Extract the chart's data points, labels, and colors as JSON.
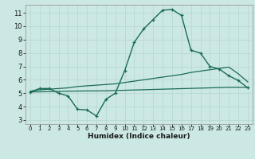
{
  "xlabel": "Humidex (Indice chaleur)",
  "bg_color": "#cce8e4",
  "grid_color": "#b8d8d4",
  "line_color": "#1a6b5a",
  "xlim": [
    -0.5,
    23.5
  ],
  "ylim": [
    2.7,
    11.6
  ],
  "xticks": [
    0,
    1,
    2,
    3,
    4,
    5,
    6,
    7,
    8,
    9,
    10,
    11,
    12,
    13,
    14,
    15,
    16,
    17,
    18,
    19,
    20,
    21,
    22,
    23
  ],
  "yticks": [
    3,
    4,
    5,
    6,
    7,
    8,
    9,
    10,
    11
  ],
  "line1_x": [
    0,
    1,
    2,
    3,
    4,
    5,
    6,
    7,
    8,
    9,
    10,
    11,
    12,
    13,
    14,
    15,
    16,
    17,
    18,
    19,
    20,
    21,
    22,
    23
  ],
  "line1_y": [
    5.1,
    5.35,
    5.35,
    5.0,
    4.8,
    3.8,
    3.75,
    3.3,
    4.55,
    5.0,
    6.7,
    8.8,
    9.8,
    10.5,
    11.2,
    11.25,
    10.8,
    8.2,
    8.0,
    7.0,
    6.8,
    6.3,
    5.95,
    5.4
  ],
  "line2_x": [
    0,
    1,
    2,
    3,
    4,
    5,
    6,
    7,
    8,
    9,
    10,
    11,
    12,
    13,
    14,
    15,
    16,
    17,
    18,
    19,
    20,
    21,
    22,
    23
  ],
  "line2_y": [
    5.15,
    5.25,
    5.3,
    5.35,
    5.4,
    5.5,
    5.55,
    5.6,
    5.65,
    5.7,
    5.8,
    5.9,
    6.0,
    6.1,
    6.2,
    6.3,
    6.4,
    6.55,
    6.65,
    6.75,
    6.85,
    6.95,
    6.45,
    5.85
  ],
  "line3_x": [
    0,
    1,
    2,
    3,
    4,
    5,
    6,
    7,
    8,
    9,
    10,
    11,
    12,
    13,
    14,
    15,
    16,
    17,
    18,
    19,
    20,
    21,
    22,
    23
  ],
  "line3_y": [
    5.1,
    5.1,
    5.12,
    5.14,
    5.15,
    5.16,
    5.17,
    5.17,
    5.18,
    5.2,
    5.22,
    5.24,
    5.26,
    5.28,
    5.3,
    5.32,
    5.34,
    5.36,
    5.38,
    5.4,
    5.42,
    5.44,
    5.44,
    5.44
  ]
}
